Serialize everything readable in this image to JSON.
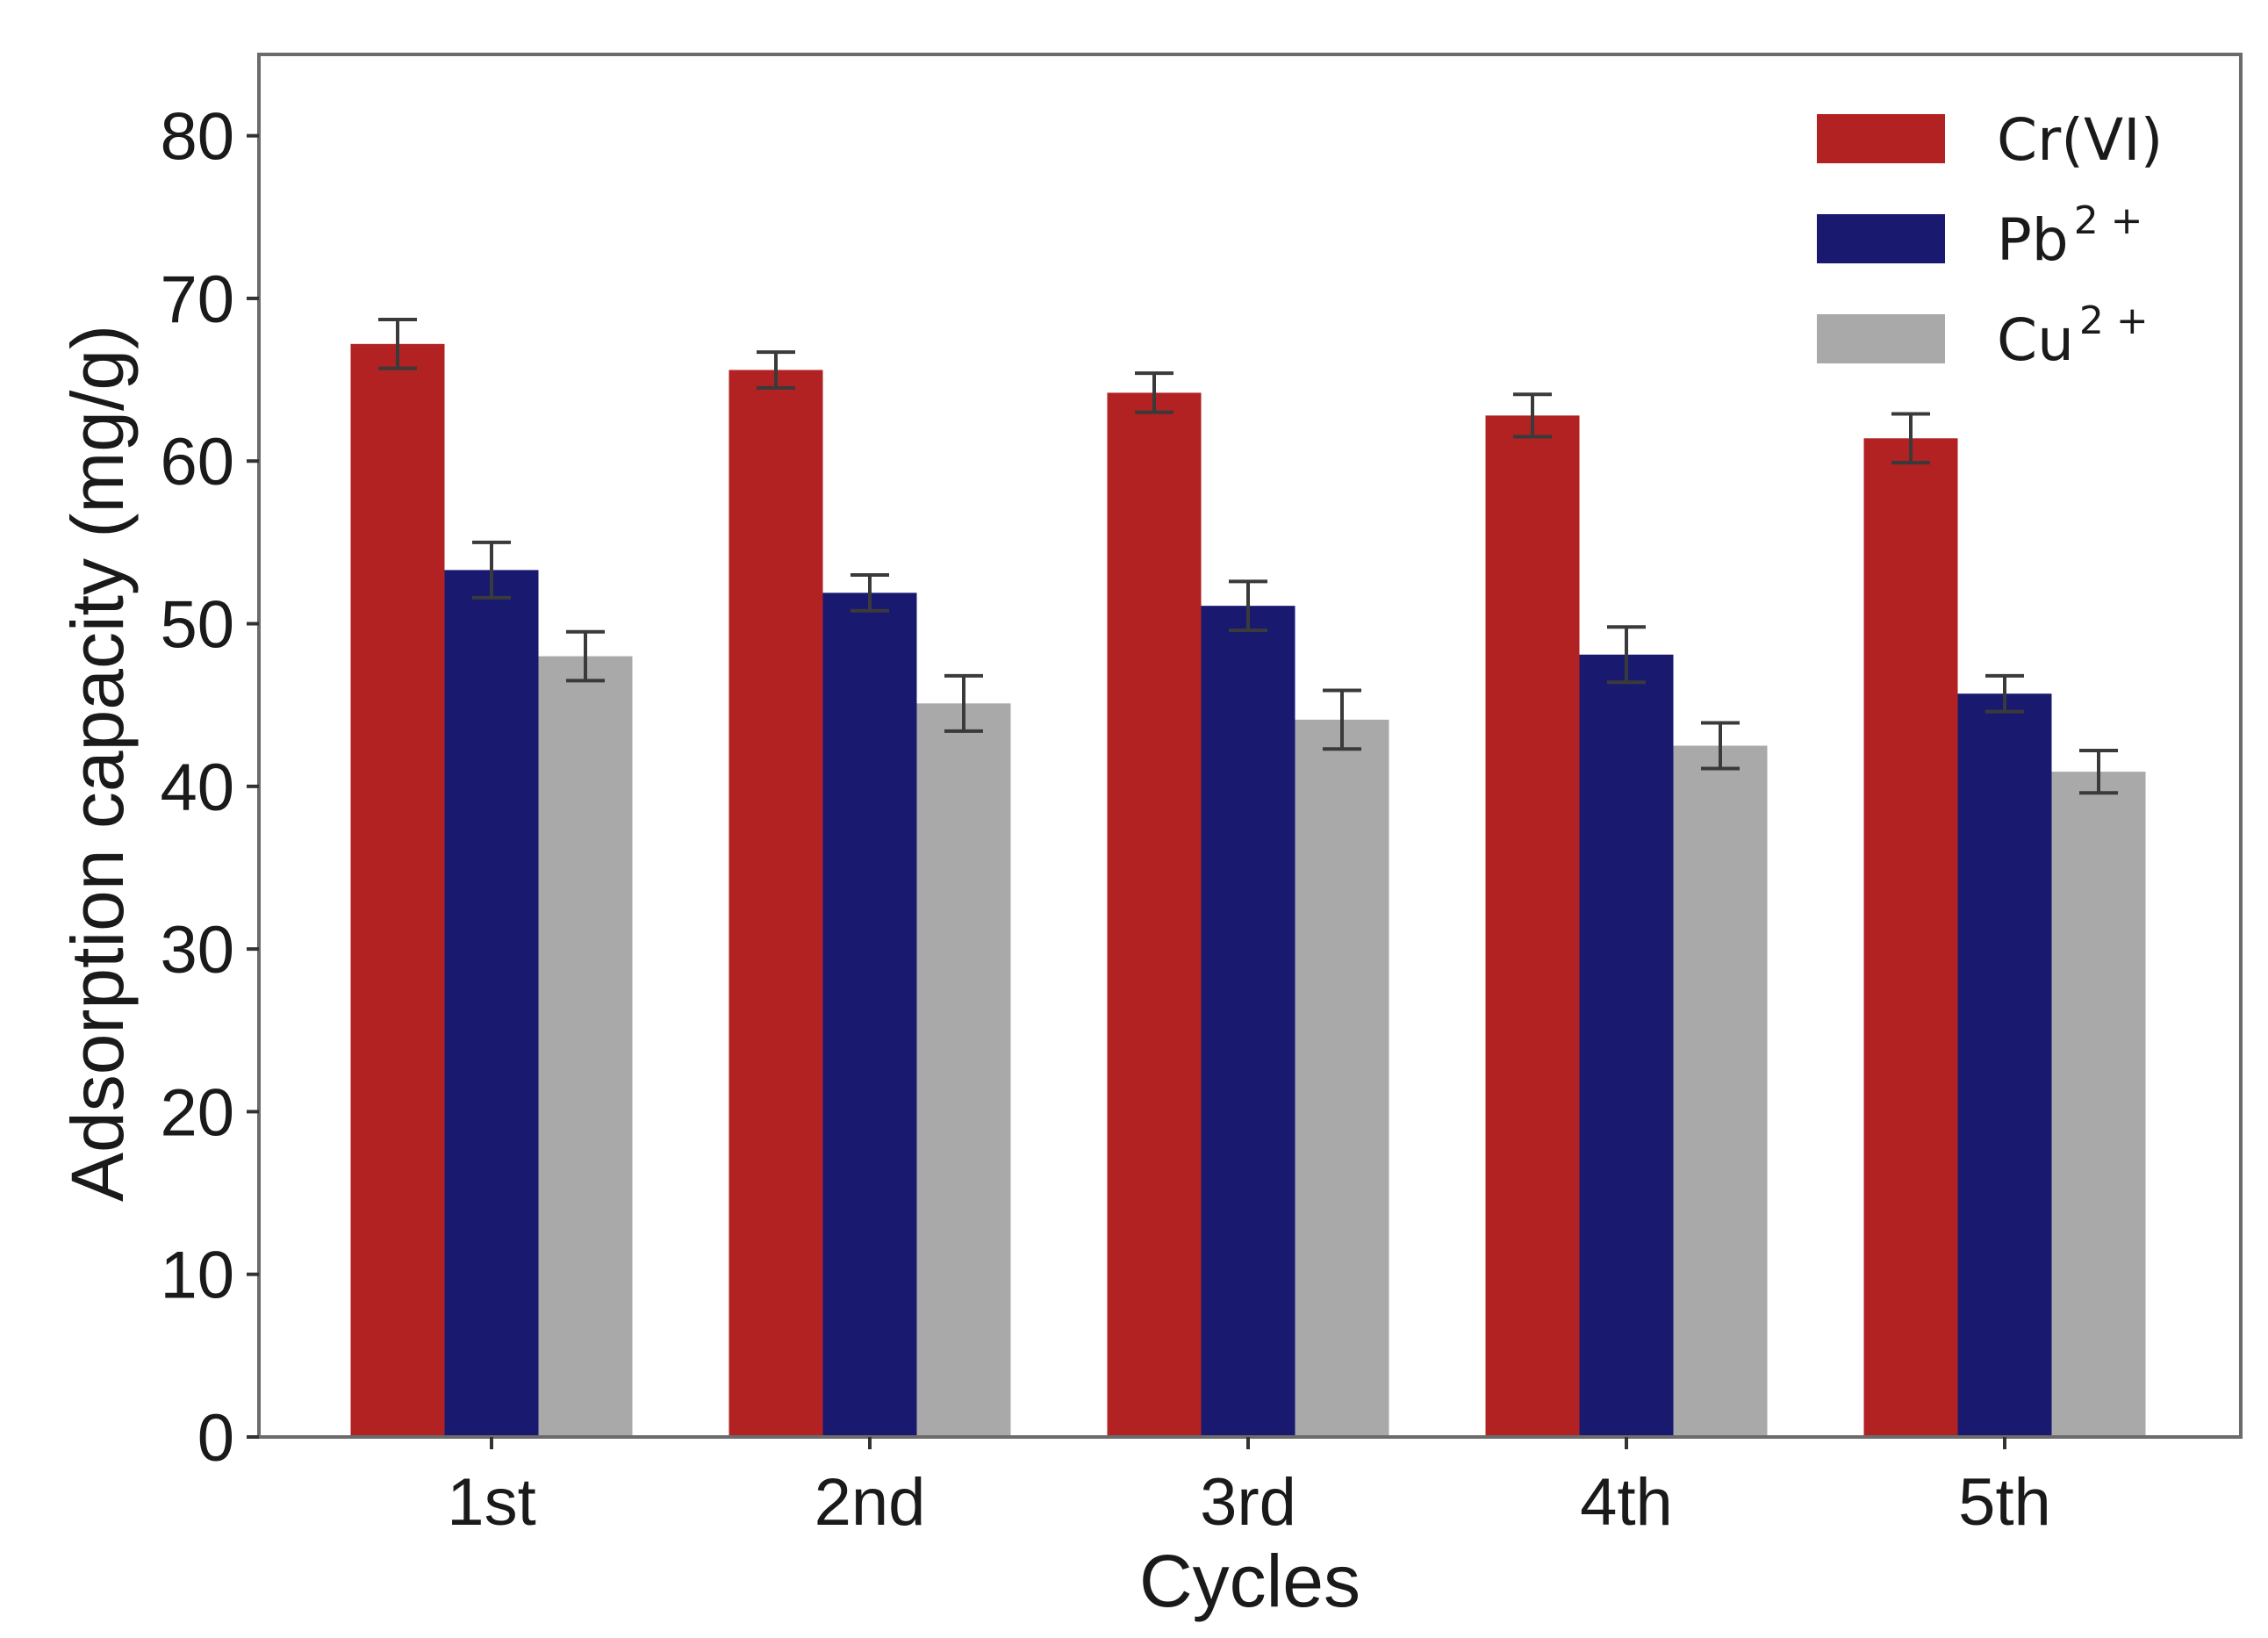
{
  "chart_data": {
    "type": "bar",
    "title": "",
    "xlabel": "Cycles",
    "ylabel": "Adsorption capacity (mg/g)",
    "ylim": [
      0,
      85
    ],
    "yticks": [
      "0",
      "10",
      "20",
      "30",
      "40",
      "50",
      "60",
      "70",
      "80"
    ],
    "categories": [
      "1st",
      "2nd",
      "3rd",
      "4th",
      "5th"
    ],
    "legend_position": "top-right",
    "grid": false,
    "series": [
      {
        "name": "Cr(VI)",
        "legend_base": "Cr(VI)",
        "legend_sup": "",
        "color": "#b22222",
        "values": [
          67.2,
          65.6,
          64.2,
          62.8,
          61.4
        ],
        "errors": [
          1.5,
          1.1,
          1.2,
          1.3,
          1.5
        ]
      },
      {
        "name": "Pb2+",
        "legend_base": "Pb",
        "legend_sup": "2 +",
        "color": "#191970",
        "values": [
          53.3,
          51.9,
          51.1,
          48.1,
          45.7
        ],
        "errors": [
          1.7,
          1.1,
          1.5,
          1.7,
          1.1
        ]
      },
      {
        "name": "Cu2+",
        "legend_base": "Cu",
        "legend_sup": "2 +",
        "color": "#a9a9a9",
        "values": [
          48.0,
          45.1,
          44.1,
          42.5,
          40.9
        ],
        "errors": [
          1.5,
          1.7,
          1.8,
          1.4,
          1.3
        ]
      }
    ]
  }
}
